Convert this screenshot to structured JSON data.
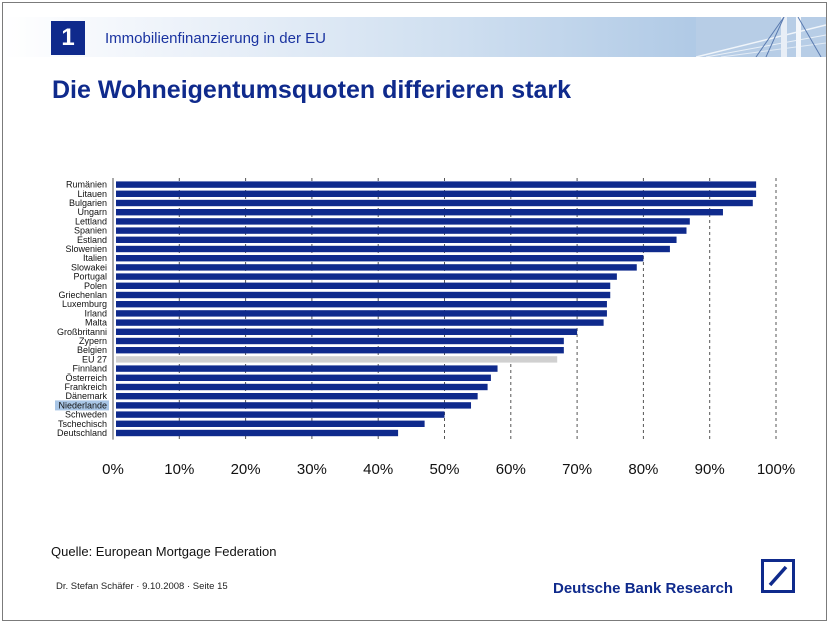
{
  "header": {
    "chapter_number": "1",
    "chapter_title": "Immobilienfinanzierung in der EU"
  },
  "title": "Die Wohneigentumsquoten differieren stark",
  "colors": {
    "bar": "#0f2a8c",
    "highlight_bar": "#d0d0d0",
    "label_highlight_bg": "#a9c6e6",
    "brand": "#0f2a8c"
  },
  "chart_data": {
    "type": "bar",
    "orientation": "horizontal",
    "categories": [
      "Rumänien",
      "Litauen",
      "Bulgarien",
      "Ungarn",
      "Lettland",
      "Spanien",
      "Estland",
      "Slowenien",
      "Italien",
      "Slowakei",
      "Portugal",
      "Polen",
      "Griechenlan",
      "Luxemburg",
      "Irland",
      "Malta",
      "Großbritanni",
      "Zypern",
      "Belgien",
      "EU 27",
      "Finnland",
      "Österreich",
      "Frankreich",
      "Dänemark",
      "Niederlande",
      "Schweden",
      "Tschechisch",
      "Deutschland"
    ],
    "values": [
      97,
      97,
      96.5,
      92,
      87,
      86.5,
      85,
      84,
      80,
      79,
      76,
      75,
      75,
      74.5,
      74.5,
      74,
      70,
      68,
      68,
      67,
      58,
      57,
      56.5,
      55,
      54,
      50,
      47,
      43
    ],
    "highlight_bar": "EU 27",
    "highlight_label": "Niederlande",
    "xlim": [
      0,
      100
    ],
    "x_ticks": [
      "0%",
      "10%",
      "20%",
      "30%",
      "40%",
      "50%",
      "60%",
      "70%",
      "80%",
      "90%",
      "100%"
    ],
    "grid": "vertical dashed",
    "legend": "none",
    "xlabel": "",
    "ylabel": ""
  },
  "source_note": "Quelle: European Mortgage Federation",
  "footer": {
    "author_line": "Dr. Stefan Schäfer · 9.10.2008 · Seite 15",
    "brand": "Deutsche Bank Research"
  }
}
